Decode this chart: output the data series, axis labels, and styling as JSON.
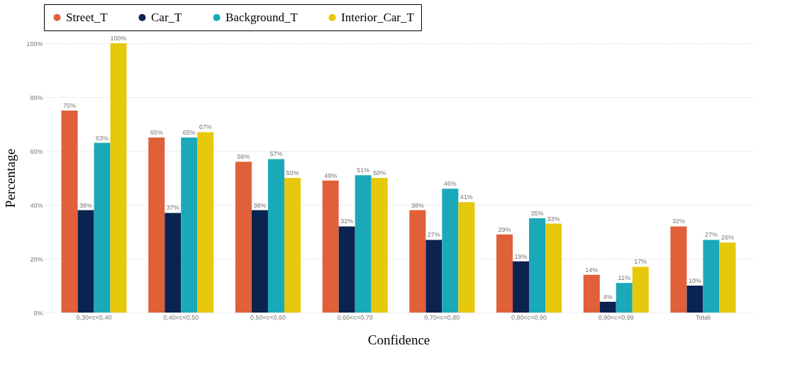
{
  "chart_data": {
    "type": "bar",
    "xlabel": "Confidence",
    "ylabel": "Percentage",
    "categories": [
      "0,30<c<0,40",
      "0,40<c<0,50",
      "0,50<c<0,60",
      "0,60<c<0,70",
      "0,70<c<0,80",
      "0,80<c<0,90",
      "0,90<c<0,99",
      "Totali"
    ],
    "series": [
      {
        "name": "Street_T",
        "color": "#e0603a",
        "values": [
          75,
          65,
          56,
          49,
          38,
          29,
          14,
          32
        ],
        "value_labels": [
          "75%",
          "65%",
          "56%",
          "49%",
          "38%",
          "29%",
          "14%",
          "32%"
        ]
      },
      {
        "name": "Car_T",
        "color": "#0b2350",
        "values": [
          38,
          37,
          38,
          32,
          27,
          19,
          4,
          10
        ],
        "value_labels": [
          "38%",
          "37%",
          "38%",
          "32%",
          "27%",
          "19%",
          "4%",
          "10%"
        ]
      },
      {
        "name": "Background_T",
        "color": "#1aa9b8",
        "values": [
          63,
          65,
          57,
          51,
          46,
          35,
          11,
          27
        ],
        "value_labels": [
          "63%",
          "65%",
          "57%",
          "51%",
          "46%",
          "35%",
          "11%",
          "27%"
        ]
      },
      {
        "name": "Interior_Car_T",
        "color": "#e6c80c",
        "values": [
          100,
          67,
          50,
          50,
          41,
          33,
          17,
          26
        ],
        "value_labels": [
          "100%",
          "67%",
          "50%",
          "50%",
          "41%",
          "33%",
          "17%",
          "26%"
        ]
      }
    ],
    "ylim": [
      0,
      100
    ],
    "yticks": [
      {
        "value": 0,
        "label": "0%"
      },
      {
        "value": 20,
        "label": "20%"
      },
      {
        "value": 40,
        "label": "40%"
      },
      {
        "value": 60,
        "label": "60%"
      },
      {
        "value": 80,
        "label": "80%"
      },
      {
        "value": 100,
        "label": "100%"
      }
    ],
    "grid": "y",
    "legend": "top"
  }
}
